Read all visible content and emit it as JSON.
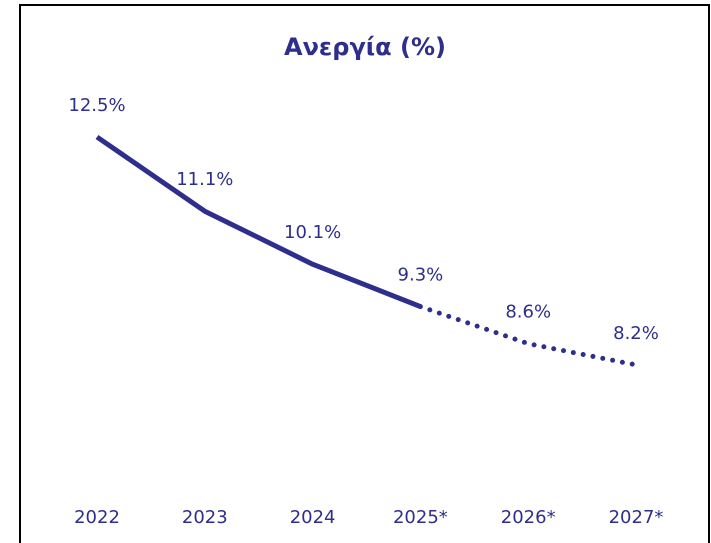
{
  "chart_data": {
    "type": "line",
    "title": "Ανεργία (%)",
    "categories": [
      "2022",
      "2023",
      "2024",
      "2025*",
      "2026*",
      "2027*"
    ],
    "series": [
      {
        "color": "#2e2e8c",
        "style": "solid",
        "values": [
          12.5,
          11.1,
          10.1,
          9.3,
          null,
          null
        ],
        "value_labels": [
          "12.5%",
          "11.1%",
          "10.1%",
          "9.3%",
          null,
          null
        ]
      },
      {
        "color": "#2e2e8c",
        "style": "dotted",
        "values": [
          null,
          null,
          null,
          9.3,
          8.6,
          8.2
        ],
        "value_labels": [
          null,
          null,
          null,
          null,
          "8.6%",
          "8.2%"
        ]
      }
    ],
    "ylim": [
      7,
      13
    ]
  }
}
